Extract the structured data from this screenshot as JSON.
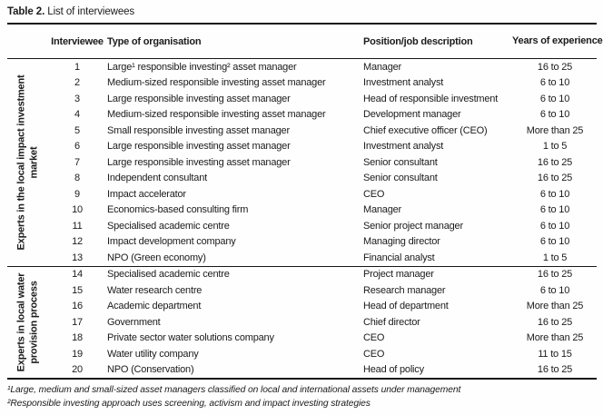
{
  "title": {
    "label": "Table 2.",
    "text": "List of interviewees"
  },
  "table": {
    "columns": [
      "Interviewee",
      "Type of organisation",
      "Position/job description",
      "Years of\nexperience"
    ],
    "groups": [
      {
        "label": "Experts in the local impact investment\nmarket",
        "rows": [
          {
            "interviewee": "1",
            "organisation": "Large¹ responsible investing² asset manager",
            "position": "Manager",
            "years": "16 to 25"
          },
          {
            "interviewee": "2",
            "organisation": "Medium-sized responsible investing asset manager",
            "position": "Investment analyst",
            "years": "6 to 10"
          },
          {
            "interviewee": "3",
            "organisation": "Large responsible investing asset manager",
            "position": "Head of responsible investment",
            "years": "6 to 10"
          },
          {
            "interviewee": "4",
            "organisation": "Medium-sized responsible investing asset manager",
            "position": "Development manager",
            "years": "6 to 10"
          },
          {
            "interviewee": "5",
            "organisation": "Small responsible investing asset manager",
            "position": "Chief executive officer (CEO)",
            "years": "More than 25"
          },
          {
            "interviewee": "6",
            "organisation": "Large responsible investing asset manager",
            "position": "Investment analyst",
            "years": "1 to 5"
          },
          {
            "interviewee": "7",
            "organisation": "Large responsible investing asset manager",
            "position": "Senior consultant",
            "years": "16 to 25"
          },
          {
            "interviewee": "8",
            "organisation": "Independent consultant",
            "position": "Senior consultant",
            "years": "16 to 25"
          },
          {
            "interviewee": "9",
            "organisation": "Impact accelerator",
            "position": "CEO",
            "years": "6 to 10"
          },
          {
            "interviewee": "10",
            "organisation": "Economics-based consulting firm",
            "position": "Manager",
            "years": "6 to 10"
          },
          {
            "interviewee": "11",
            "organisation": "Specialised academic centre",
            "position": "Senior project manager",
            "years": "6 to 10"
          },
          {
            "interviewee": "12",
            "organisation": "Impact development company",
            "position": "Managing director",
            "years": "6 to 10"
          },
          {
            "interviewee": "13",
            "organisation": "NPO (Green economy)",
            "position": "Financial analyst",
            "years": "1 to 5"
          }
        ]
      },
      {
        "label": "Experts in local water\nprovision process",
        "rows": [
          {
            "interviewee": "14",
            "organisation": "Specialised academic centre",
            "position": "Project manager",
            "years": "16 to 25"
          },
          {
            "interviewee": "15",
            "organisation": "Water research centre",
            "position": "Research manager",
            "years": "6 to 10"
          },
          {
            "interviewee": "16",
            "organisation": "Academic department",
            "position": "Head of department",
            "years": "More than 25"
          },
          {
            "interviewee": "17",
            "organisation": "Government",
            "position": "Chief director",
            "years": "16 to 25"
          },
          {
            "interviewee": "18",
            "organisation": "Private sector water solutions company",
            "position": "CEO",
            "years": "More than 25"
          },
          {
            "interviewee": "19",
            "organisation": "Water utility company",
            "position": "CEO",
            "years": "11 to 15"
          },
          {
            "interviewee": "20",
            "organisation": "NPO (Conservation)",
            "position": "Head of policy",
            "years": "16 to 25"
          }
        ]
      }
    ]
  },
  "footnotes": [
    "¹Large, medium and small-sized asset managers classified on local and international assets under management",
    "²Responsible investing approach uses screening, activism and impact investing strategies"
  ]
}
